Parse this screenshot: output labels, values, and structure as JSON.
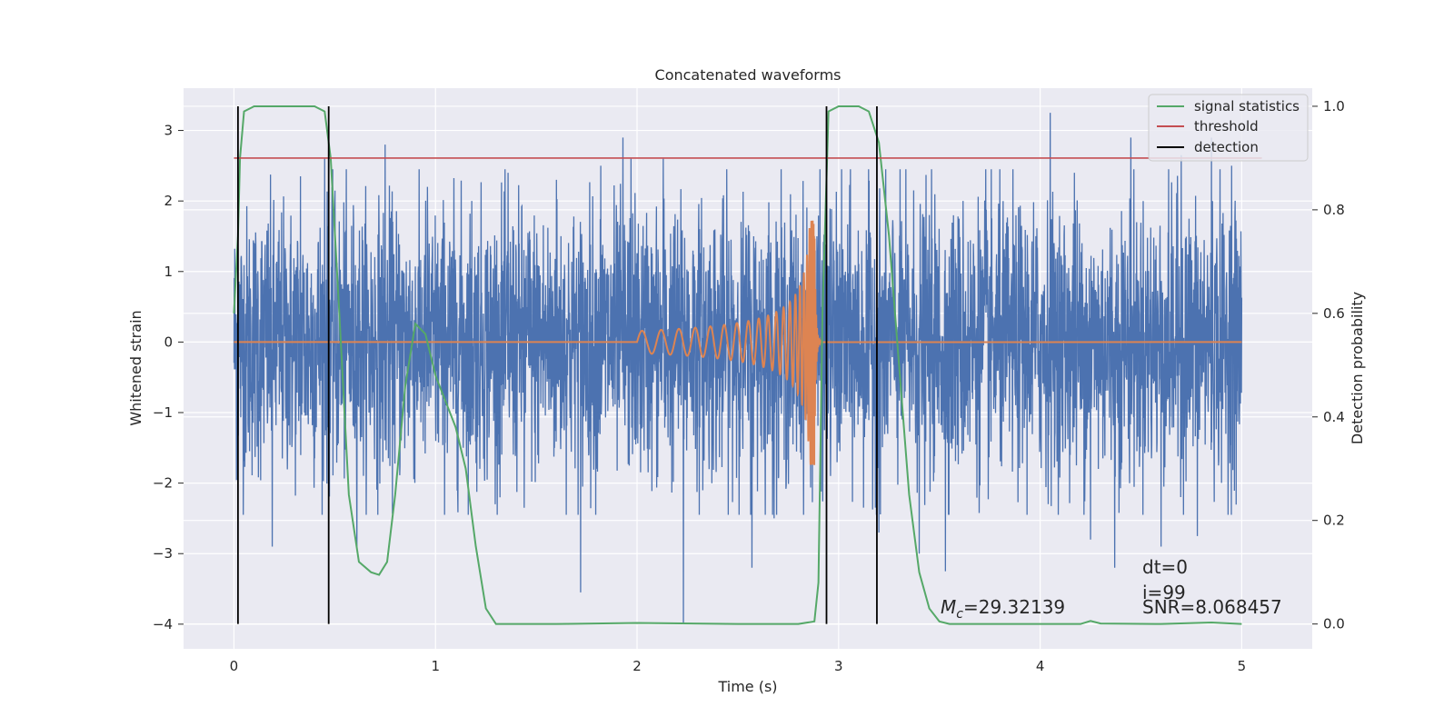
{
  "chart_data": {
    "type": "line",
    "title": "Concatenated waveforms",
    "xlabel": "Time (s)",
    "ylabel": "Whitened strain",
    "y2label": "Detection probability",
    "xlim": [
      -0.25,
      5.35
    ],
    "ylim": [
      -4.35,
      3.6
    ],
    "y2lim": [
      -0.048,
      1.035
    ],
    "xticks": [
      0,
      1,
      2,
      3,
      4,
      5
    ],
    "yticks": [
      -4,
      -3,
      -2,
      -1,
      0,
      1,
      2,
      3
    ],
    "y2ticks": [
      0.0,
      0.2,
      0.4,
      0.6,
      0.8,
      1.0
    ],
    "y2tick_labels": [
      "0.0",
      "0.2",
      "0.4",
      "0.6",
      "0.8",
      "1.0"
    ],
    "grid": true,
    "legend_position": "upper-right",
    "colors": {
      "strain": "#4c72b0",
      "template": "#dd8452",
      "signal_statistics": "#55a868",
      "threshold": "#c44e52",
      "detection": "#000000",
      "axes_background": "#eaeaf2",
      "grid": "#ffffff"
    },
    "strain": {
      "x_range": [
        0,
        5
      ],
      "typical_amplitude": 1.0,
      "spikes": [
        [
          0.19,
          -2.9
        ],
        [
          0.45,
          -2.8
        ],
        [
          0.45,
          2.6
        ],
        [
          0.61,
          -2.95
        ],
        [
          0.75,
          2.8
        ],
        [
          1.82,
          2.5
        ],
        [
          1.93,
          2.9
        ],
        [
          1.97,
          2.6
        ],
        [
          2.13,
          2.6
        ],
        [
          2.23,
          -4.0
        ],
        [
          2.57,
          2.7
        ],
        [
          2.57,
          -3.2
        ],
        [
          3.4,
          -3.0
        ],
        [
          3.53,
          -3.25
        ],
        [
          4.05,
          3.25
        ],
        [
          4.25,
          -2.8
        ],
        [
          4.45,
          2.9
        ],
        [
          4.6,
          -2.9
        ],
        [
          4.85,
          2.9
        ],
        [
          4.95,
          -2.6
        ],
        [
          4.95,
          2.5
        ],
        [
          1.72,
          -3.55
        ],
        [
          4.37,
          -3.2
        ],
        [
          4.7,
          2.65
        ],
        [
          0.96,
          2.2
        ],
        [
          1.36,
          2.4
        ],
        [
          1.6,
          2.3
        ],
        [
          2.94,
          2.5
        ],
        [
          3.73,
          2.45
        ],
        [
          4.17,
          2.4
        ],
        [
          0.33,
          2.35
        ],
        [
          1.18,
          2.0
        ],
        [
          2.68,
          -2.5
        ],
        [
          3.2,
          -2.7
        ],
        [
          4.78,
          -2.75
        ],
        [
          1.44,
          -2.35
        ]
      ]
    },
    "template": {
      "start": 2.0,
      "merger": 2.88,
      "end": 5.0,
      "peak_amplitude": 1.75
    },
    "signal_statistics": {
      "x": [
        0,
        0.02,
        0.03,
        0.05,
        0.1,
        0.2,
        0.3,
        0.4,
        0.45,
        0.48,
        0.52,
        0.57,
        0.62,
        0.68,
        0.72,
        0.76,
        0.8,
        0.85,
        0.9,
        0.95,
        1.0,
        1.05,
        1.1,
        1.15,
        1.2,
        1.25,
        1.3,
        1.6,
        2.0,
        2.5,
        2.8,
        2.88,
        2.9,
        2.92,
        2.95,
        3.0,
        3.1,
        3.15,
        3.2,
        3.25,
        3.3,
        3.35,
        3.4,
        3.45,
        3.5,
        3.55,
        4.0,
        4.2,
        4.25,
        4.3,
        4.6,
        4.85,
        5.0
      ],
      "y": [
        0.6,
        0.75,
        0.9,
        0.99,
        1.0,
        1.0,
        1.0,
        1.0,
        0.99,
        0.9,
        0.62,
        0.25,
        0.12,
        0.1,
        0.095,
        0.12,
        0.25,
        0.46,
        0.58,
        0.56,
        0.48,
        0.43,
        0.38,
        0.3,
        0.15,
        0.03,
        0.0,
        0.0,
        0.002,
        0.0,
        0.0,
        0.005,
        0.08,
        0.6,
        0.99,
        1.0,
        1.0,
        0.99,
        0.93,
        0.75,
        0.5,
        0.25,
        0.1,
        0.03,
        0.005,
        0.0,
        0.0,
        0.0,
        0.006,
        0.001,
        0.0,
        0.003,
        0.0
      ]
    },
    "threshold": {
      "value": 0.9,
      "x_range": [
        0,
        5.1
      ]
    },
    "detections": [
      0.02,
      0.47,
      2.94,
      3.19
    ],
    "legend": [
      "signal statistics",
      "threshold",
      "detection"
    ],
    "annotations": {
      "mc_text": "=29.32139",
      "dt_text": "dt=0",
      "i_text": "i=99",
      "snr_text": "SNR=8.068457"
    }
  }
}
